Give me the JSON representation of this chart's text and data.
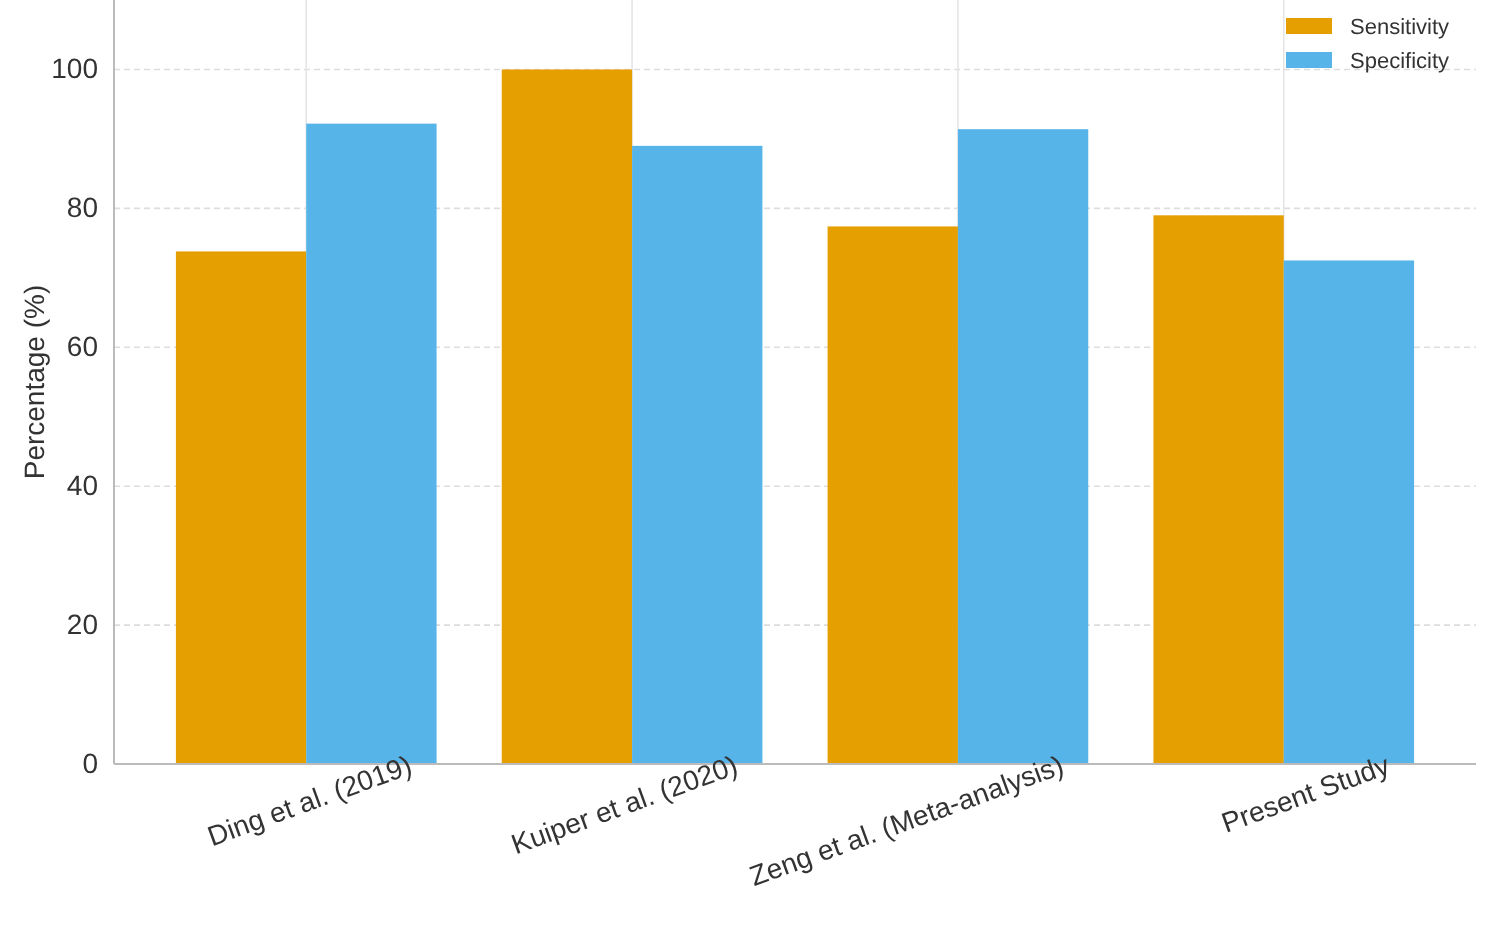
{
  "chart_data": {
    "type": "bar",
    "ylabel": "Percentage (%)",
    "categories": [
      "Ding et al. (2019)",
      "Kuiper et al. (2020)",
      "Zeng et al. (Meta-analysis)",
      "Present Study"
    ],
    "series": [
      {
        "name": "Sensitivity",
        "color": "#e69f00",
        "values": [
          73.8,
          100,
          77.4,
          79.0
        ]
      },
      {
        "name": "Specificity",
        "color": "#56b4e9",
        "values": [
          92.2,
          89.0,
          91.4,
          72.5
        ]
      }
    ],
    "ylim": [
      0,
      110
    ],
    "yticks": [
      0,
      20,
      40,
      60,
      80,
      100
    ],
    "grid": true,
    "legend": "top right"
  }
}
